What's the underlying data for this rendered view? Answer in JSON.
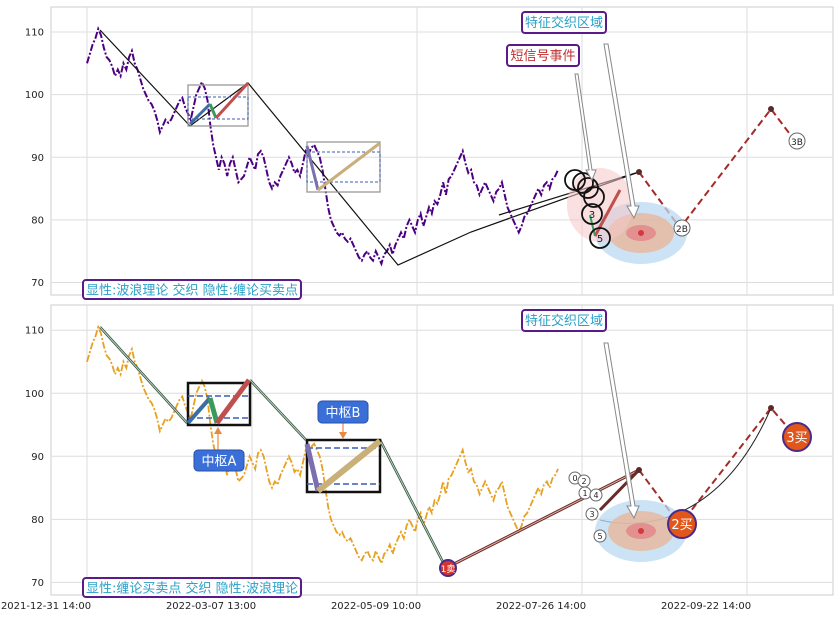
{
  "chart_data": [
    {
      "type": "line",
      "panel": "top",
      "ylim": [
        68,
        114
      ],
      "grid": true,
      "y_ticks": [
        70,
        80,
        90,
        100,
        110
      ],
      "y_tick_labels": [
        "70",
        "80",
        "90",
        "100",
        "110"
      ],
      "legend_text": "显性:波浪理论 交织 隐性:缠论买卖点",
      "annotations": [
        {
          "key": "feature_zone",
          "text": "特征交织区域"
        },
        {
          "key": "short_signal",
          "text": "短信号事件"
        }
      ],
      "price_line_color": "#4b0082",
      "wave_line_color": "#111111",
      "forecast_line_color": "#a52a2a",
      "waves": {
        "x": [
          0,
          8,
          60,
          100,
          190,
          240,
          300,
          355,
          430
        ],
        "y": [
          105,
          110,
          96,
          102,
          85,
          92,
          73,
          88,
          98
        ]
      },
      "points": {
        "x": [
          0,
          2,
          4,
          6,
          8,
          10,
          12,
          14,
          16,
          18,
          20,
          22,
          24,
          26,
          28,
          30,
          32,
          34,
          36,
          38,
          40,
          42,
          44,
          46,
          48,
          50,
          52,
          54,
          56,
          58,
          60,
          62,
          64,
          66,
          68,
          70,
          72,
          74,
          76,
          78,
          80,
          82,
          84,
          86,
          88,
          90,
          92,
          94,
          96,
          98,
          100,
          102,
          104,
          106,
          108,
          110,
          112,
          114,
          116,
          118,
          120,
          122,
          124,
          126,
          128,
          130,
          132,
          134,
          136,
          138,
          140,
          142,
          144,
          146,
          148,
          150,
          152,
          154,
          156,
          158,
          160,
          162,
          164,
          166,
          168,
          170,
          172,
          174,
          176,
          178,
          180,
          182,
          184,
          186,
          188,
          190,
          192,
          194,
          196,
          198,
          200,
          202,
          204,
          206,
          208,
          210,
          212,
          214,
          216,
          218,
          220,
          222,
          224,
          226,
          228,
          230,
          232,
          234,
          236,
          238,
          240,
          242,
          244,
          246,
          248,
          250,
          252,
          254,
          256,
          258,
          260,
          262,
          264,
          266,
          268,
          270,
          272,
          274,
          276,
          278,
          280,
          282,
          284,
          286,
          288,
          290,
          292,
          294,
          296,
          298,
          300,
          302,
          304,
          306,
          308,
          310,
          312,
          314,
          316,
          318,
          320,
          322,
          324,
          326,
          328,
          330,
          332,
          334,
          336
        ],
        "y": [
          105,
          106.5,
          108,
          109,
          110.5,
          109.5,
          107.5,
          106,
          105.5,
          104.5,
          103,
          104,
          103,
          105,
          104,
          106,
          107,
          105,
          104,
          102.5,
          101,
          100,
          99,
          98.5,
          97.5,
          96,
          94,
          95,
          96,
          95.5,
          96,
          97,
          98,
          99,
          99.5,
          98,
          97,
          96,
          98,
          100,
          101,
          102,
          101,
          99,
          95,
          92,
          90,
          88,
          90,
          89,
          87,
          89,
          90,
          88,
          86,
          86.5,
          87,
          88.5,
          90,
          89,
          88,
          90.5,
          91,
          90,
          88,
          86,
          85,
          86,
          85.5,
          87,
          88,
          89,
          90,
          89,
          87.5,
          88,
          87,
          89,
          91,
          90.5,
          91.5,
          92,
          91,
          90,
          88,
          85,
          82,
          80,
          79,
          78,
          77.5,
          78,
          77,
          76.5,
          77,
          76,
          75,
          74,
          73.5,
          74.5,
          75,
          74,
          73.5,
          75,
          74,
          73,
          74.5,
          75,
          76,
          74.5,
          76,
          77,
          78,
          77,
          79,
          80,
          79,
          78,
          80,
          81,
          79,
          80.5,
          82,
          81,
          83,
          82.5,
          84,
          86,
          84,
          86.5,
          87,
          88,
          89,
          90,
          91,
          89,
          87.5,
          88,
          86,
          85.5,
          84,
          85,
          86,
          85,
          84,
          83,
          84.5,
          85,
          86,
          84,
          82,
          81,
          80,
          79,
          78,
          79,
          80.5,
          81,
          82,
          83,
          84,
          85,
          84,
          85.5,
          86,
          85,
          86.5,
          87,
          88
        ]
      },
      "circle_labels": [
        "0",
        "1",
        "2",
        "3",
        "4",
        "5",
        "2B",
        "3B"
      ],
      "label_positions_x": [
        310,
        316,
        322,
        328,
        334,
        340,
        410,
        440
      ],
      "label_positions_y": [
        86,
        85,
        83,
        82,
        80,
        79,
        79.5,
        92.5
      ]
    },
    {
      "type": "line",
      "panel": "bottom",
      "ylim": [
        68,
        114
      ],
      "grid": true,
      "y_ticks": [
        70,
        80,
        90,
        100,
        110
      ],
      "y_tick_labels": [
        "70",
        "80",
        "90",
        "100",
        "110"
      ],
      "legend_text": "显性:缠论买卖点 交织 隐性:波浪理论",
      "annotations": [
        {
          "key": "feature_zone",
          "text": "特征交织区域"
        },
        {
          "key": "zs_a",
          "text": "中枢A"
        },
        {
          "key": "zs_b",
          "text": "中枢B"
        }
      ],
      "price_line_color": "#e8a020",
      "bsp_labels": [
        "1卖",
        "2买",
        "3买"
      ],
      "bsp_colors": {
        "sell": "#d9342b",
        "buy": "#e0561b"
      },
      "bsp_x": [
        225,
        390,
        435
      ],
      "bsp_y": [
        72,
        79.5,
        93
      ],
      "circle_labels": [
        "0",
        "1",
        "2",
        "3",
        "4",
        "5"
      ],
      "circle_x": [
        310,
        314,
        318,
        322,
        326,
        330
      ],
      "circle_y": [
        85.5,
        84,
        83,
        81.5,
        80,
        79
      ],
      "x_tick_labels": [
        "2021-12-31 14:00",
        "2022-03-07 13:00",
        "2022-05-09 10:00",
        "2022-07-26 14:00",
        "2022-09-22 14:00"
      ]
    }
  ]
}
